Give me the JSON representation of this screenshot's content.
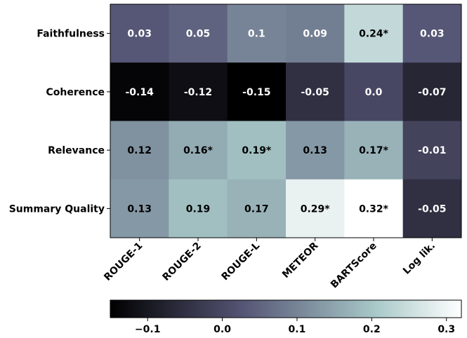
{
  "chart_data": {
    "type": "heatmap",
    "rows": [
      "Faithfulness",
      "Coherence",
      "Relevance",
      "Summary Quality"
    ],
    "columns": [
      "ROUGE-1",
      "ROUGE-2",
      "ROUGE-L",
      "METEOR",
      "BARTScore",
      "Log lik."
    ],
    "values": [
      [
        0.03,
        0.05,
        0.1,
        0.09,
        0.24,
        0.03
      ],
      [
        -0.14,
        -0.12,
        -0.15,
        -0.05,
        0.0,
        -0.07
      ],
      [
        0.12,
        0.16,
        0.19,
        0.13,
        0.17,
        -0.01
      ],
      [
        0.13,
        0.19,
        0.17,
        0.29,
        0.32,
        -0.05
      ]
    ],
    "cell_labels": [
      [
        "0.03",
        "0.05",
        "0.1",
        "0.09",
        "0.24*",
        "0.03"
      ],
      [
        "-0.14",
        "-0.12",
        "-0.15",
        "-0.05",
        "0.0",
        "-0.07"
      ],
      [
        "0.12",
        "0.16*",
        "0.19*",
        "0.13",
        "0.17*",
        "-0.01"
      ],
      [
        "0.13",
        "0.19",
        "0.17",
        "0.29*",
        "0.32*",
        "-0.05"
      ]
    ],
    "colormap": "bone",
    "vmin": -0.15,
    "vmax": 0.32,
    "colorbar": {
      "orientation": "horizontal",
      "placement": "bottom",
      "ticks": [
        -0.1,
        0.0,
        0.1,
        0.2,
        0.3
      ],
      "tick_labels": [
        "−0.1",
        "0.0",
        "0.1",
        "0.2",
        "0.3"
      ]
    },
    "text_colors": {
      "light": "#ffffff",
      "dark": "#000000"
    }
  }
}
